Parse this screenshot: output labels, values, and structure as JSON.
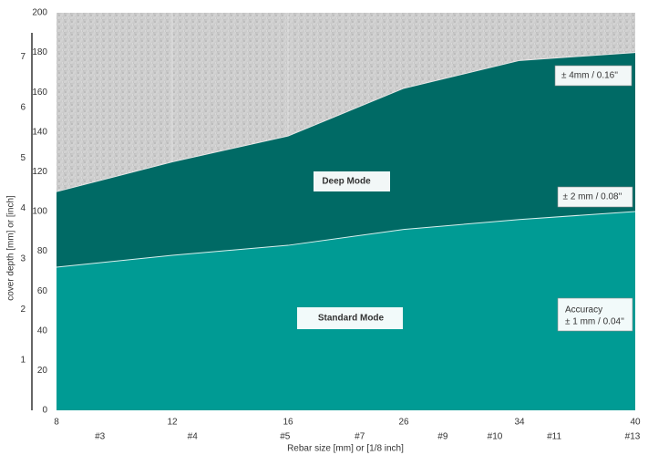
{
  "chart_data": {
    "type": "area",
    "x_label": "Rebar size [mm] or [1/8 inch]",
    "y_label": "cover depth [mm] or [inch]",
    "x": [
      8,
      12,
      16,
      26,
      34,
      40
    ],
    "series": [
      {
        "name": "Deep Mode",
        "color": "#006a65",
        "values": [
          110,
          125,
          138,
          162,
          176,
          180
        ]
      },
      {
        "name": "Standard Mode",
        "color": "#009b94",
        "values": [
          72,
          78,
          83,
          91,
          96,
          100
        ]
      }
    ],
    "xlim": [
      8,
      40
    ],
    "xticks": [
      8,
      12,
      16,
      26,
      34,
      40
    ],
    "x2ticks": [
      {
        "value": 9.5,
        "label": "#3"
      },
      {
        "value": 12.7,
        "label": "#4"
      },
      {
        "value": 15.9,
        "label": "#5"
      },
      {
        "value": 22.2,
        "label": "#7"
      },
      {
        "value": 28.7,
        "label": "#9"
      },
      {
        "value": 32.3,
        "label": "#10"
      },
      {
        "value": 35.8,
        "label": "#11"
      },
      {
        "value": 40,
        "label": "#13"
      }
    ],
    "ylim": [
      0,
      200
    ],
    "yticks": [
      0,
      20,
      40,
      60,
      80,
      100,
      120,
      140,
      160,
      180,
      200
    ],
    "y2lim": [
      0,
      7.874
    ],
    "y2ticks": [
      1,
      2,
      3,
      4,
      5,
      6,
      7
    ],
    "annotations": [
      "Deep Mode",
      "Standard Mode",
      "± 4mm / 0.16''",
      "± 2 mm / 0.08''",
      "Accuracy",
      "± 1 mm / 0.04''"
    ]
  }
}
